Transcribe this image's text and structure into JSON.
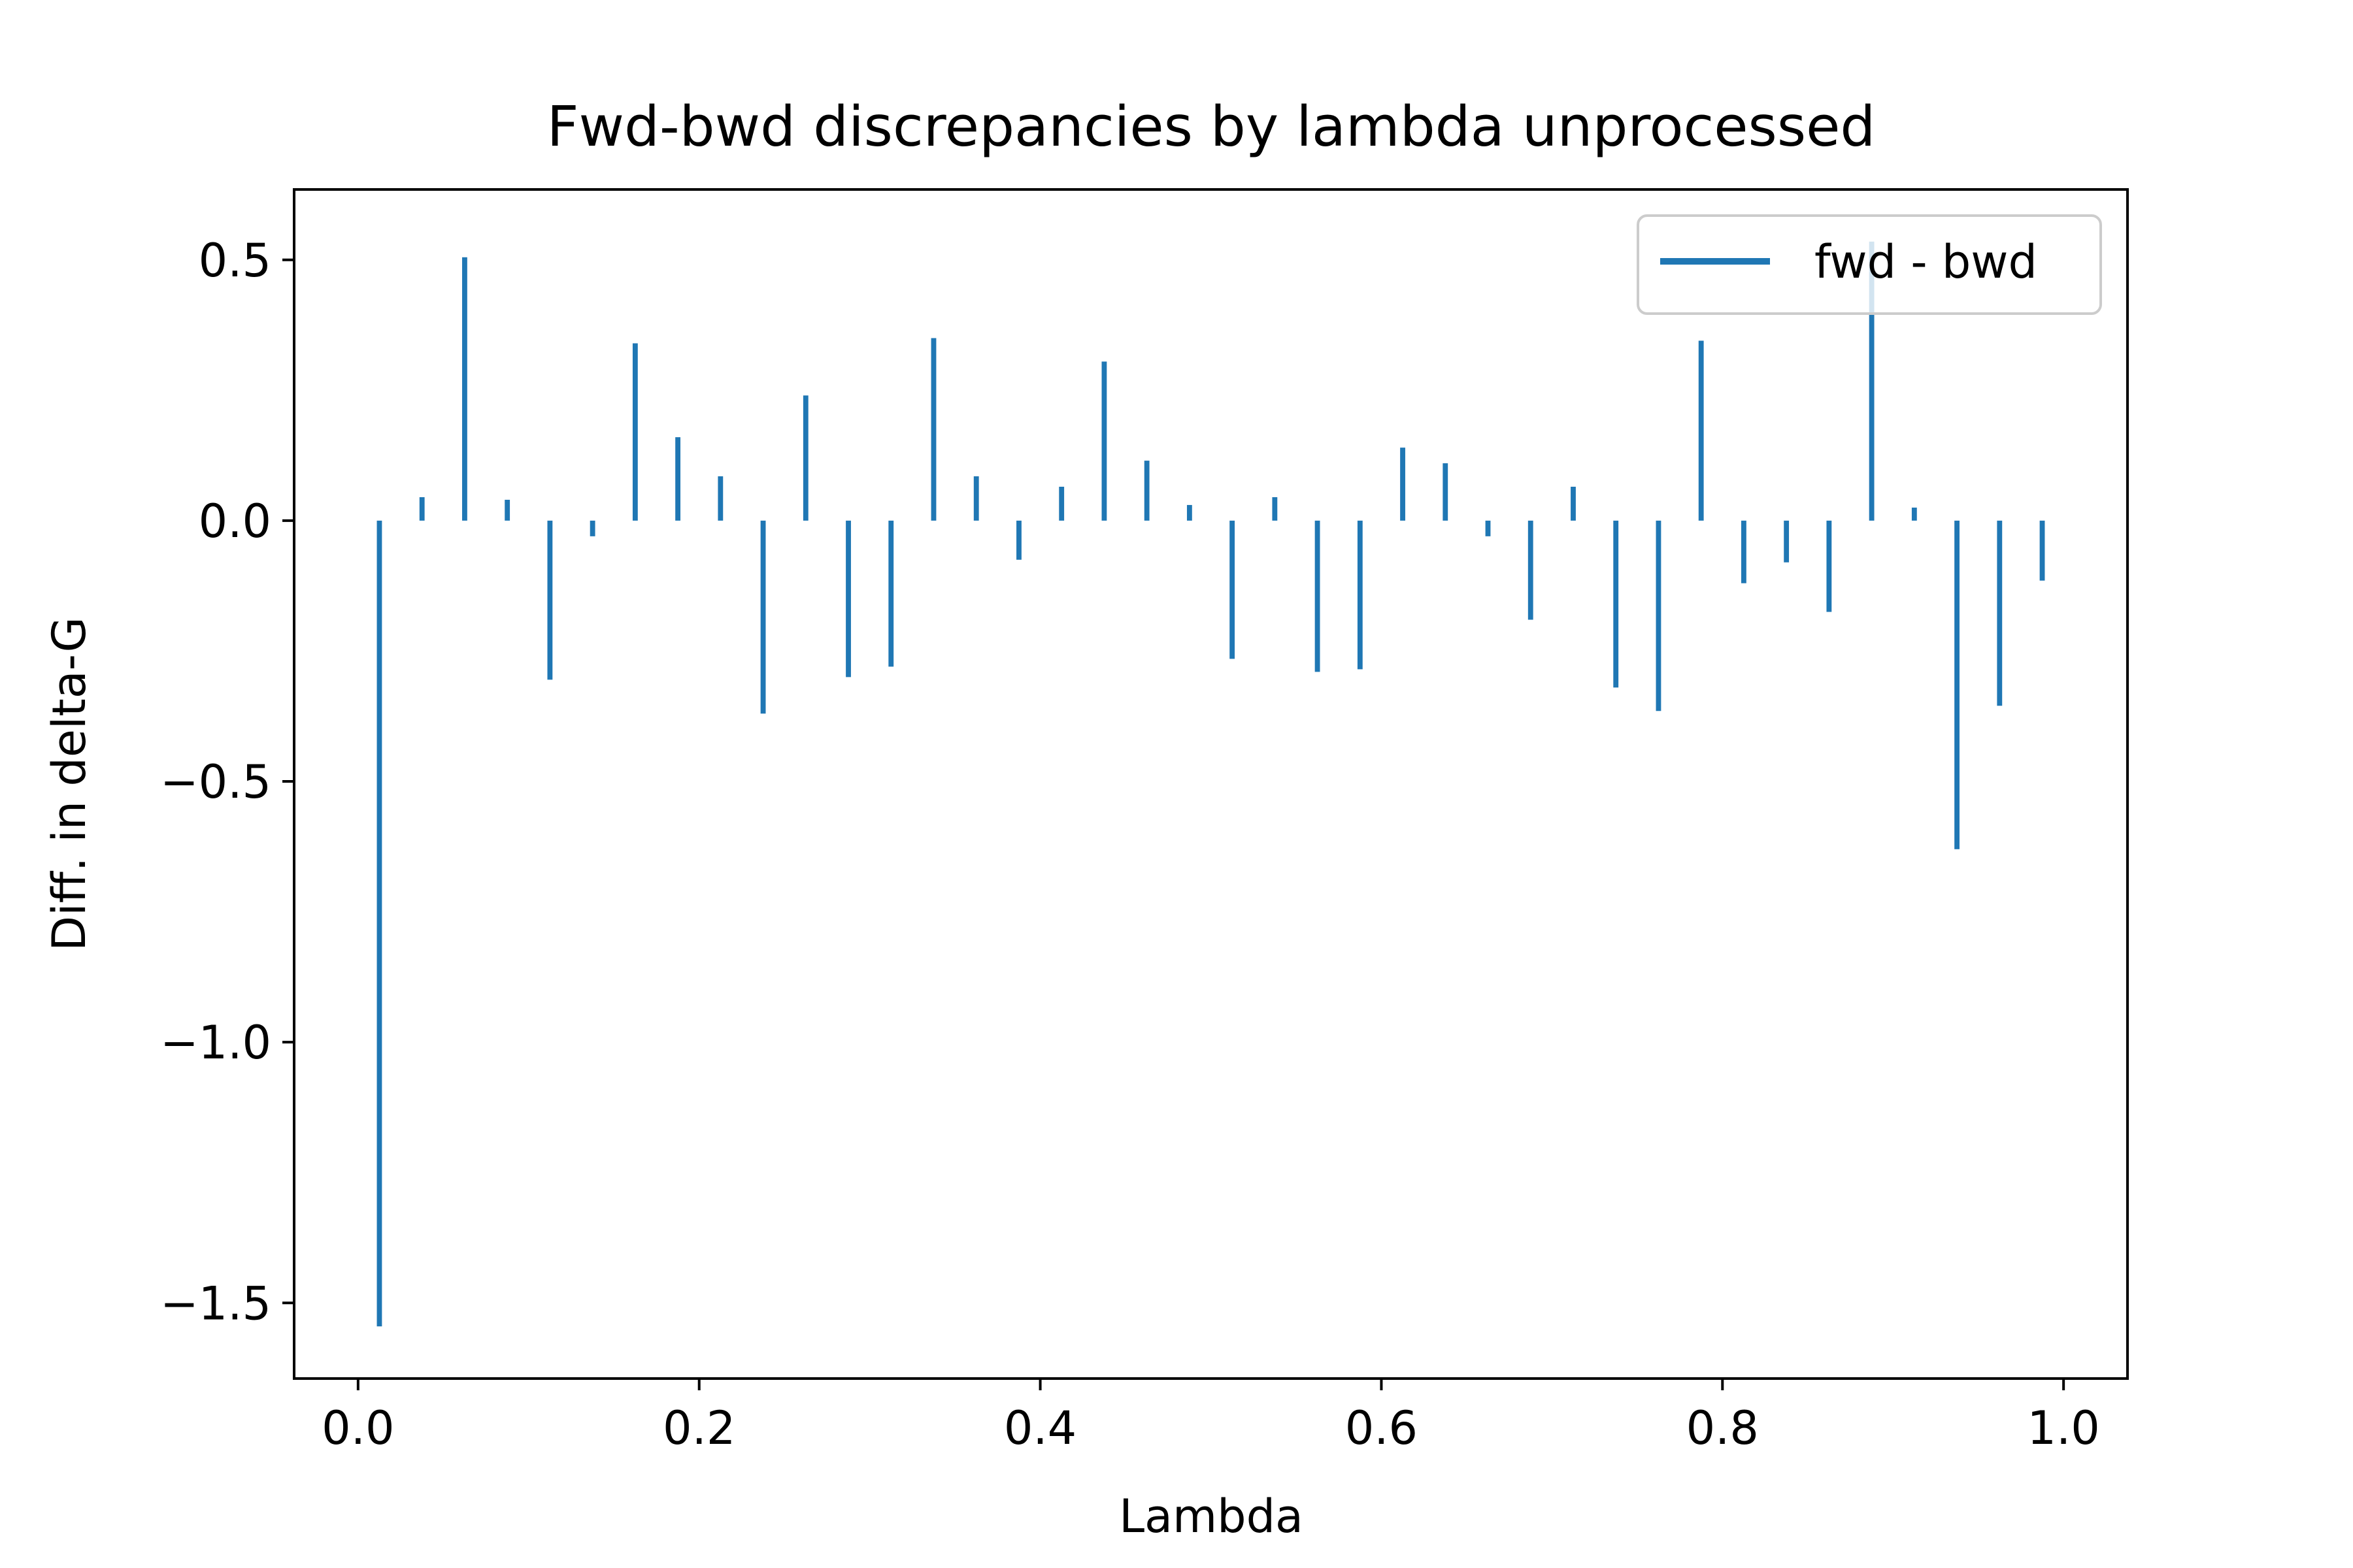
{
  "chart_data": {
    "type": "bar",
    "title": "Fwd-bwd discrepancies by lambda unprocessed",
    "xlabel": "Lambda",
    "ylabel": "Diff. in delta-G",
    "xlim": [
      -0.0375,
      1.0375
    ],
    "ylim": [
      -1.645,
      0.635
    ],
    "xticks": [
      0.0,
      0.2,
      0.4,
      0.6,
      0.8,
      1.0
    ],
    "xtick_labels": [
      "0.0",
      "0.2",
      "0.4",
      "0.6",
      "0.8",
      "1.0"
    ],
    "yticks": [
      0.5,
      0.0,
      -0.5,
      -1.0,
      -1.5
    ],
    "ytick_labels": [
      "0.5",
      "0.0",
      "−0.5",
      "−1.0",
      "−1.5"
    ],
    "grid": false,
    "legend_position": "upper right",
    "series": [
      {
        "name": "fwd - bwd",
        "color": "#1f77b4",
        "x": [
          0.0125,
          0.0375,
          0.0625,
          0.0875,
          0.1125,
          0.1375,
          0.1625,
          0.1875,
          0.2125,
          0.2375,
          0.2625,
          0.2875,
          0.3125,
          0.3375,
          0.3625,
          0.3875,
          0.4125,
          0.4375,
          0.4625,
          0.4875,
          0.5125,
          0.5375,
          0.5625,
          0.5875,
          0.6125,
          0.6375,
          0.6625,
          0.6875,
          0.7125,
          0.7375,
          0.7625,
          0.7875,
          0.8125,
          0.8375,
          0.8625,
          0.8875,
          0.9125,
          0.9375,
          0.9625,
          0.9875
        ],
        "values": [
          -1.545,
          0.045,
          0.505,
          0.04,
          -0.305,
          -0.03,
          0.34,
          0.16,
          0.085,
          -0.37,
          0.24,
          -0.3,
          -0.28,
          0.35,
          0.085,
          -0.075,
          0.065,
          0.305,
          0.115,
          0.03,
          -0.265,
          0.045,
          -0.29,
          -0.285,
          0.14,
          0.11,
          -0.03,
          -0.19,
          0.065,
          -0.32,
          -0.365,
          0.345,
          -0.12,
          -0.08,
          -0.175,
          0.535,
          0.025,
          -0.63,
          -0.355,
          -0.115
        ]
      }
    ]
  }
}
